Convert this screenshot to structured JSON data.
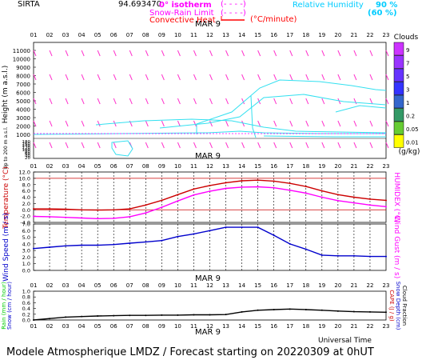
{
  "header": {
    "station": "SIRTA",
    "station_code": "94.693470",
    "legend_isotherm": "0° isotherm",
    "legend_snow_rain": "Snow-Rain Limit",
    "legend_convective": "Convective Heat",
    "legend_dashes": "(- - - -)",
    "legend_cminute": "(°C/minute)",
    "legend_rh": "Relative Humidity",
    "rh_90": "90 %",
    "rh_60": "(60 %)",
    "colors": {
      "isotherm": "#ff00ff",
      "snow_rain": "#ff00ff",
      "convective": "#ff0000",
      "rh": "#00ccff"
    }
  },
  "date_label": "MAR 9",
  "footer": "Modele Atmospherique LMDZ / Forecast starting on 20220309 at 0hUT",
  "universal_time_label": "Universal Time",
  "hours": [
    "01",
    "02",
    "03",
    "04",
    "05",
    "06",
    "07",
    "08",
    "09",
    "10",
    "11",
    "12",
    "13",
    "14",
    "15",
    "16",
    "17",
    "18",
    "19",
    "20",
    "21",
    "22",
    "23"
  ],
  "chart_data": [
    {
      "type": "heatmap",
      "title": "",
      "ylabel": "Height (m a.s.l.)",
      "ylabel_low": "Up to 200 m a.s.l.",
      "y_ticks_high": [
        "11000",
        "10000",
        "9000",
        "8000",
        "7000",
        "6000",
        "5000",
        "4000",
        "3000",
        "2000",
        "1000"
      ],
      "y_ticks_low": [
        "180",
        "160",
        "140",
        "120",
        "100",
        "80",
        "60",
        "40",
        "20"
      ],
      "clouds_legend": {
        "title": "Clouds",
        "unit": "(g/kg)",
        "levels": [
          "9",
          "7",
          "5",
          "3",
          "1",
          "0.2",
          "0.05",
          "0.01"
        ],
        "colors": [
          "#cc33ff",
          "#9933ff",
          "#6633ff",
          "#3333ff",
          "#3366cc",
          "#339966",
          "#66cc33",
          "#ffff00"
        ]
      }
    },
    {
      "type": "line",
      "ylabel": "Temperature (°C)",
      "ylabel_right": "HUMIDEX (°C)",
      "y_ticks": [
        "12.0",
        "10.0",
        "8.0",
        "6.0",
        "4.0",
        "2.0",
        "0.0",
        "-2.0",
        "-4.0"
      ],
      "ylim": [
        -4,
        12
      ],
      "x": [
        1,
        2,
        3,
        4,
        5,
        6,
        7,
        8,
        9,
        10,
        11,
        12,
        13,
        14,
        15,
        16,
        17,
        18,
        19,
        20,
        21,
        22,
        23
      ],
      "series": [
        {
          "name": "Temperature",
          "color": "#cc0000",
          "values": [
            0.3,
            0.3,
            0.2,
            0.0,
            -0.1,
            0.0,
            0.3,
            1.5,
            3.0,
            4.8,
            6.6,
            7.7,
            8.6,
            9.2,
            9.4,
            9.1,
            8.4,
            7.4,
            6.0,
            4.8,
            4.0,
            3.4,
            3.0
          ]
        },
        {
          "name": "HUMIDEX",
          "color": "#ff00ff",
          "values": [
            -2.1,
            -2.2,
            -2.4,
            -2.6,
            -2.8,
            -2.7,
            -2.2,
            -1.0,
            0.8,
            2.8,
            4.7,
            5.9,
            6.8,
            7.2,
            7.3,
            7.0,
            6.2,
            5.3,
            4.0,
            2.9,
            2.2,
            1.5,
            1.0
          ]
        }
      ]
    },
    {
      "type": "line",
      "ylabel": "Wind Speed (m / s)",
      "ylabel_right": "Wind Gust (m / s)",
      "y_ticks": [
        "7.0",
        "6.0",
        "5.0",
        "4.0",
        "3.0",
        "2.0",
        "1.0",
        "0.0"
      ],
      "ylim": [
        0,
        7
      ],
      "x": [
        1,
        2,
        3,
        4,
        5,
        6,
        7,
        8,
        9,
        10,
        11,
        12,
        13,
        14,
        15,
        16,
        17,
        18,
        19,
        20,
        21,
        22,
        23
      ],
      "series": [
        {
          "name": "Wind Speed",
          "color": "#0000cc",
          "values": [
            3.3,
            3.5,
            3.7,
            3.8,
            3.8,
            3.9,
            4.1,
            4.3,
            4.5,
            5.1,
            5.5,
            6.0,
            6.5,
            6.5,
            6.5,
            5.3,
            4.0,
            3.2,
            2.3,
            2.2,
            2.2,
            2.1,
            2.1
          ]
        }
      ]
    },
    {
      "type": "line",
      "ylabel": "Rain (mm / hour)",
      "ylabel2": "Snow (cm / hour)",
      "ylabel_right": "CAPE (J / g)",
      "ylabel_right2": "Snow Depth (cm)",
      "ylabel_right3": "Cloud Fraction",
      "y_ticks": [
        "1.0",
        "0.8",
        "0.6",
        "0.4",
        "0.2",
        "0.0"
      ],
      "ylim": [
        0,
        1
      ],
      "x": [
        1,
        2,
        3,
        4,
        5,
        6,
        7,
        8,
        9,
        10,
        11,
        12,
        13,
        14,
        15,
        16,
        17,
        18,
        19,
        20,
        21,
        22,
        23
      ],
      "series": [
        {
          "name": "Cloud Fraction",
          "color": "#000000",
          "values": [
            0.0,
            0.05,
            0.1,
            0.12,
            0.14,
            0.15,
            0.16,
            0.16,
            0.17,
            0.17,
            0.18,
            0.18,
            0.19,
            0.28,
            0.34,
            0.36,
            0.38,
            0.36,
            0.34,
            0.31,
            0.29,
            0.28,
            0.27
          ]
        }
      ]
    }
  ]
}
